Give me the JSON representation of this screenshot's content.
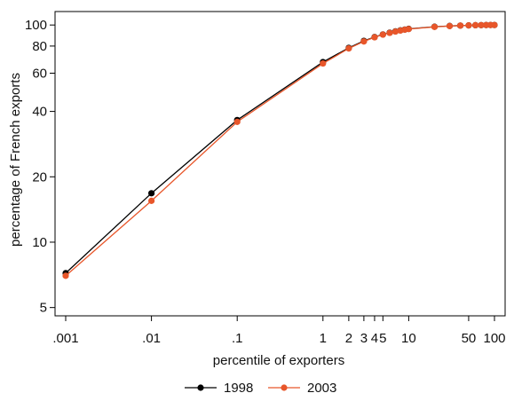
{
  "chart_data": {
    "type": "line",
    "title": "",
    "xlabel": "percentile of exporters",
    "ylabel": "percentage of French exports",
    "x_scale": "log",
    "y_scale": "log",
    "xlim": [
      0.001,
      100
    ],
    "ylim": [
      4.8,
      105
    ],
    "x_ticks": [
      {
        "value": 0.001,
        "label": ".001"
      },
      {
        "value": 0.01,
        "label": ".01"
      },
      {
        "value": 0.1,
        "label": ".1"
      },
      {
        "value": 1,
        "label": "1"
      },
      {
        "value": 2,
        "label": "2"
      },
      {
        "value": 3,
        "label": "3"
      },
      {
        "value": 4,
        "label": "4"
      },
      {
        "value": 5,
        "label": "5"
      },
      {
        "value": 10,
        "label": "10"
      },
      {
        "value": 50,
        "label": "50"
      },
      {
        "value": 100,
        "label": "100"
      }
    ],
    "y_ticks": [
      {
        "value": 5,
        "label": "5"
      },
      {
        "value": 10,
        "label": "10"
      },
      {
        "value": 20,
        "label": "20"
      },
      {
        "value": 40,
        "label": "40"
      },
      {
        "value": 60,
        "label": "60"
      },
      {
        "value": 80,
        "label": "80"
      },
      {
        "value": 100,
        "label": "100"
      }
    ],
    "grid": false,
    "legend_position": "bottom-center",
    "x": [
      0.001,
      0.01,
      0.1,
      1,
      2,
      3,
      4,
      5,
      6,
      7,
      8,
      9,
      10,
      20,
      30,
      40,
      50,
      60,
      70,
      80,
      90,
      100
    ],
    "series": [
      {
        "name": "1998",
        "color": "#000000",
        "values": [
          7.2,
          16.8,
          36.5,
          67.5,
          78.5,
          84.5,
          88.0,
          90.5,
          92.2,
          93.5,
          94.5,
          95.3,
          96.0,
          98.2,
          99.0,
          99.4,
          99.6,
          99.8,
          99.9,
          99.95,
          99.98,
          100
        ]
      },
      {
        "name": "2003",
        "color": "#e8562a",
        "values": [
          7.0,
          15.5,
          35.8,
          66.5,
          78.0,
          84.0,
          87.8,
          90.3,
          92.0,
          93.3,
          94.3,
          95.2,
          95.8,
          98.0,
          98.9,
          99.4,
          99.6,
          99.8,
          99.9,
          99.95,
          99.98,
          100
        ]
      }
    ]
  }
}
